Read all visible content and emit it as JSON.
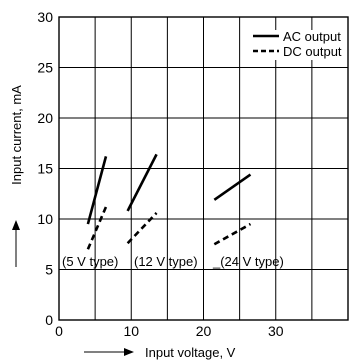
{
  "chart_data": {
    "type": "line",
    "xlabel": "Input voltage, V",
    "ylabel": "Input current, mA",
    "xlim": [
      0,
      40
    ],
    "ylim": [
      0,
      30
    ],
    "x_ticks": [
      0,
      10,
      20,
      30
    ],
    "y_ticks": [
      0,
      5,
      10,
      15,
      20,
      25,
      30
    ],
    "grid": true,
    "legend_position": "top-right",
    "legend": [
      {
        "label": "AC output",
        "style": "solid"
      },
      {
        "label": "DC output",
        "style": "dashed"
      }
    ],
    "groups": [
      {
        "label": "(5 V type)",
        "ac": {
          "x": [
            4.0,
            6.5
          ],
          "y": [
            9.5,
            16.2
          ]
        },
        "dc": {
          "x": [
            4.0,
            6.5
          ],
          "y": [
            7.0,
            11.2
          ]
        }
      },
      {
        "label": "(12 V type)",
        "ac": {
          "x": [
            9.5,
            13.5
          ],
          "y": [
            10.8,
            16.4
          ]
        },
        "dc": {
          "x": [
            9.5,
            13.5
          ],
          "y": [
            7.6,
            10.6
          ]
        }
      },
      {
        "label": "_(24 V type)",
        "ac": {
          "x": [
            21.5,
            26.5
          ],
          "y": [
            11.9,
            14.4
          ]
        },
        "dc": {
          "x": [
            21.5,
            26.5
          ],
          "y": [
            7.5,
            9.5
          ]
        }
      }
    ]
  }
}
